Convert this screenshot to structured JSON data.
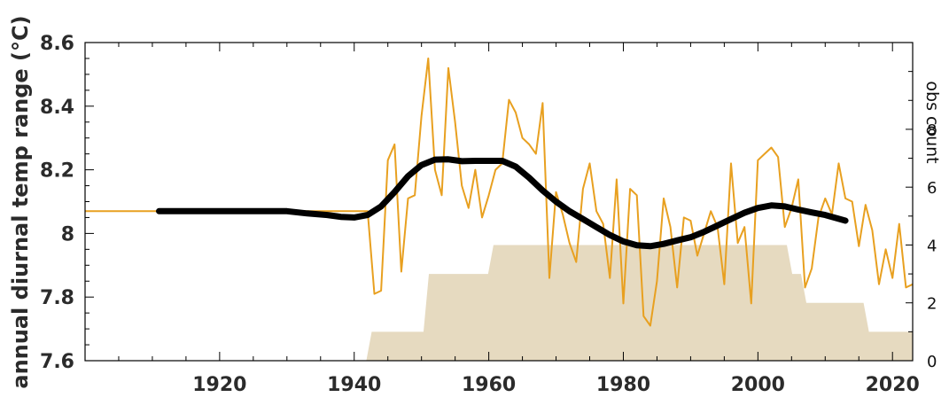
{
  "chart_data": {
    "type": "line",
    "ylabel": "annual diurnal temp range (°C)",
    "y2label": "obs count",
    "xlim": [
      1900,
      2023
    ],
    "ylim": [
      7.6,
      8.6
    ],
    "y2lim": [
      0,
      11
    ],
    "x_ticks": [
      1920,
      1940,
      1960,
      1980,
      2000,
      2020
    ],
    "x_tick_labels": [
      "1920",
      "1940",
      "1960",
      "1980",
      "2000",
      "2020"
    ],
    "y_ticks": [
      7.6,
      7.8,
      8,
      8.2,
      8.4,
      8.6
    ],
    "y_tick_labels": [
      "7.6",
      "7.8",
      "8",
      "8.2",
      "8.4",
      "8.6"
    ],
    "y2_ticks": [
      0,
      2,
      4,
      6,
      8
    ],
    "y2_tick_labels": [
      "0",
      "2",
      "4",
      "6",
      "8"
    ],
    "colors": {
      "annual": "#e8a020",
      "smoothed": "#000000",
      "count_fill": "#e6dac0",
      "axis": "#000000"
    },
    "series": [
      {
        "kind": "annual",
        "x": [
          1900,
          1941,
          1942,
          1943,
          1944,
          1945,
          1946,
          1947,
          1948,
          1949,
          1950,
          1951,
          1952,
          1953,
          1954,
          1955,
          1956,
          1957,
          1958,
          1959,
          1960,
          1961,
          1962,
          1963,
          1964,
          1965,
          1966,
          1967,
          1968,
          1969,
          1970,
          1971,
          1972,
          1973,
          1974,
          1975,
          1976,
          1977,
          1978,
          1979,
          1980,
          1981,
          1982,
          1983,
          1984,
          1985,
          1986,
          1987,
          1988,
          1989,
          1990,
          1991,
          1992,
          1993,
          1994,
          1995,
          1996,
          1997,
          1998,
          1999,
          2000,
          2001,
          2002,
          2003,
          2004,
          2005,
          2006,
          2007,
          2008,
          2009,
          2010,
          2011,
          2012,
          2013,
          2014,
          2015,
          2016,
          2017,
          2018,
          2019,
          2020,
          2021,
          2022,
          2023
        ],
        "y": [
          8.07,
          8.07,
          8.07,
          7.81,
          7.82,
          8.23,
          8.28,
          7.88,
          8.11,
          8.12,
          8.37,
          8.55,
          8.2,
          8.12,
          8.52,
          8.35,
          8.15,
          8.08,
          8.2,
          8.05,
          8.12,
          8.2,
          8.22,
          8.42,
          8.38,
          8.3,
          8.28,
          8.25,
          8.41,
          7.86,
          8.13,
          8.06,
          7.97,
          7.91,
          8.14,
          8.22,
          8.07,
          8.03,
          7.86,
          8.17,
          7.78,
          8.14,
          8.12,
          7.74,
          7.71,
          7.85,
          8.11,
          8.02,
          7.83,
          8.05,
          8.04,
          7.93,
          8.0,
          8.07,
          8.02,
          7.84,
          8.22,
          7.97,
          8.02,
          7.78,
          8.23,
          8.25,
          8.27,
          8.24,
          8.02,
          8.08,
          8.17,
          7.83,
          7.89,
          8.05,
          8.11,
          8.06,
          8.22,
          8.11,
          8.1,
          7.96,
          8.09,
          8.01,
          7.84,
          7.95,
          7.86,
          8.03,
          7.83,
          7.84
        ]
      },
      {
        "kind": "smoothed",
        "x": [
          1911,
          1915,
          1920,
          1925,
          1930,
          1933,
          1936,
          1938,
          1940,
          1942,
          1944,
          1946,
          1948,
          1950,
          1952,
          1954,
          1956,
          1958,
          1960,
          1962,
          1964,
          1966,
          1968,
          1970,
          1972,
          1974,
          1976,
          1978,
          1980,
          1982,
          1984,
          1986,
          1988,
          1990,
          1992,
          1994,
          1996,
          1998,
          2000,
          2002,
          2004,
          2006,
          2008,
          2010,
          2013
        ],
        "y": [
          8.07,
          8.07,
          8.07,
          8.07,
          8.07,
          8.063,
          8.058,
          8.052,
          8.05,
          8.058,
          8.085,
          8.13,
          8.18,
          8.215,
          8.232,
          8.233,
          8.227,
          8.228,
          8.228,
          8.228,
          8.21,
          8.175,
          8.135,
          8.1,
          8.07,
          8.045,
          8.02,
          7.995,
          7.975,
          7.963,
          7.96,
          7.967,
          7.978,
          7.988,
          8.005,
          8.025,
          8.045,
          8.065,
          8.08,
          8.088,
          8.085,
          8.075,
          8.066,
          8.058,
          8.04
        ]
      },
      {
        "kind": "obs_count",
        "x": [
          1941.8,
          1942.6,
          1950.3,
          1951.1,
          1959.9,
          1960.7,
          2004.3,
          2005.1,
          2006.4,
          2007.2,
          2015.7,
          2016.5,
          2023
        ],
        "y": [
          0,
          1,
          1,
          3,
          3,
          4,
          4,
          3,
          3,
          2,
          2,
          1,
          1
        ]
      }
    ]
  }
}
